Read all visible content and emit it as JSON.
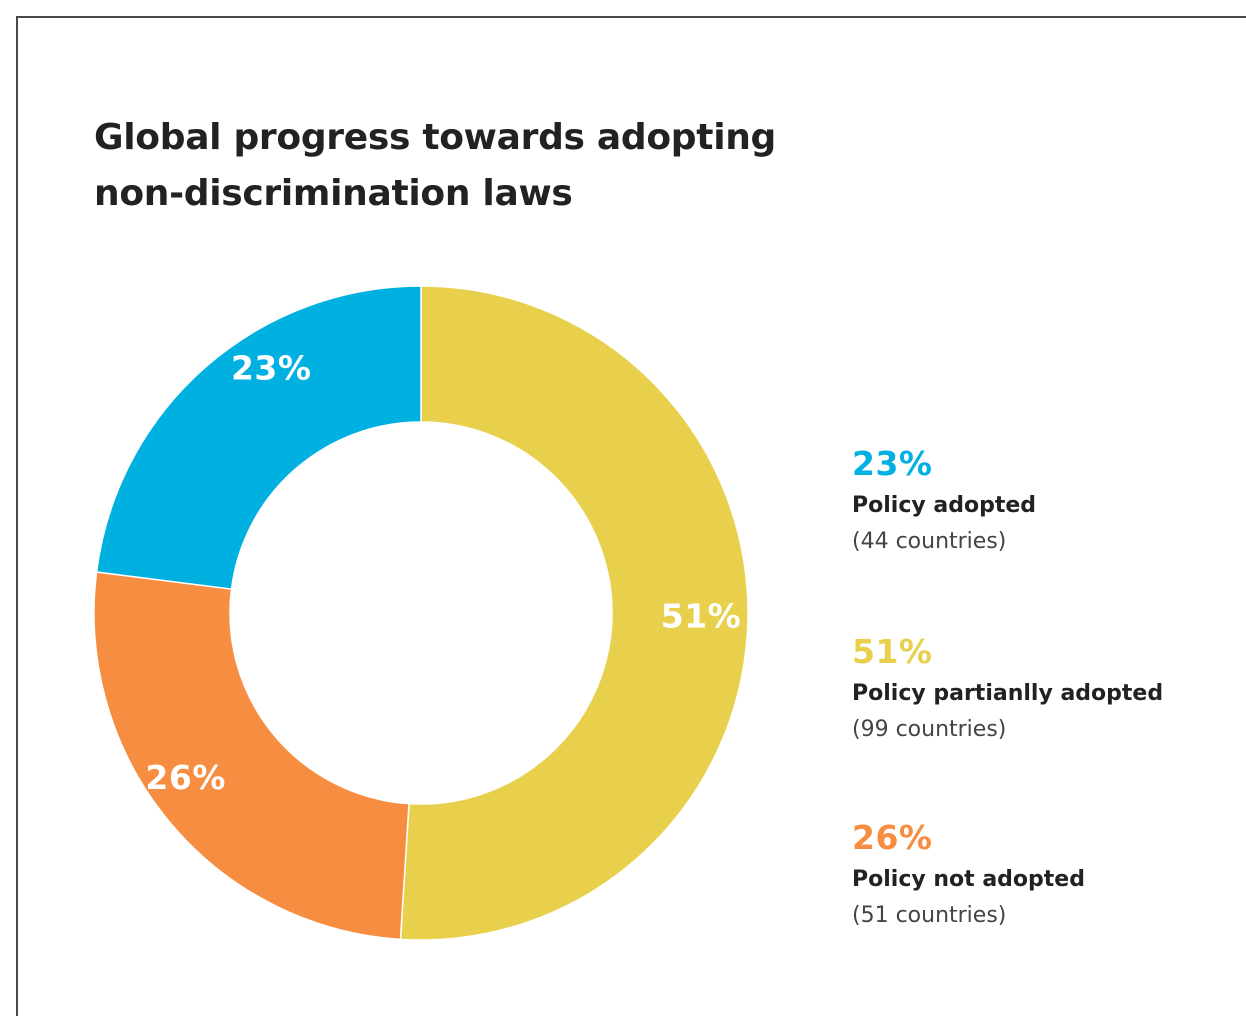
{
  "chart_data": {
    "type": "pie",
    "title_lines": [
      "Global progress towards adopting",
      "non-discrimination laws"
    ],
    "slices": [
      {
        "label": "Policy partianlly adopted",
        "value": 51,
        "value_label": "51%",
        "count_label": "(99 countries)",
        "color": "#e8d04d"
      },
      {
        "label": "Policy not adopted",
        "value": 26,
        "value_label": "26%",
        "count_label": "(51 countries)",
        "color": "#f68d40"
      },
      {
        "label": "Policy adopted",
        "value": 23,
        "value_label": "23%",
        "count_label": "(44 countries)",
        "color": "#00b0e1"
      }
    ],
    "legend": [
      {
        "value_label": "23%",
        "label": "Policy adopted",
        "count_label": "(44 countries)",
        "color": "#00b0e1"
      },
      {
        "value_label": "51%",
        "label": "Policy partianlly adopted",
        "count_label": "(99 countries)",
        "color": "#e8d04d"
      },
      {
        "value_label": "26%",
        "label": "Policy not adopted",
        "count_label": "(51 countries)",
        "color": "#f68d40"
      }
    ],
    "legend_position": "right",
    "donut": true
  }
}
